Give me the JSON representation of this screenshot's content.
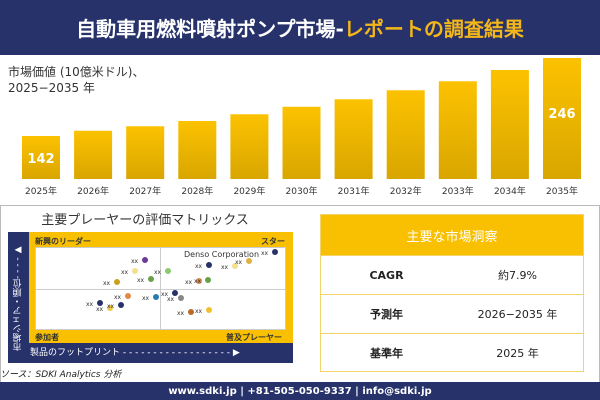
{
  "header": {
    "title_main": "自動車用燃料噴射ポンプ市場-",
    "title_accent": "レポートの調査結果"
  },
  "chart_data": {
    "type": "bar",
    "title": "市場価値 (10億米ドル)、",
    "subtitle": "2025−2035 年",
    "categories": [
      "2025年",
      "2026年",
      "2027年",
      "2028年",
      "2029年",
      "2030年",
      "2031年",
      "2032年",
      "2033年",
      "2034年",
      "2035年"
    ],
    "values": [
      142,
      149,
      155,
      162,
      171,
      181,
      191,
      203,
      215,
      230,
      246
    ],
    "data_labels": {
      "0": "142",
      "10": "246"
    },
    "colors": {
      "bar": "#f4b800",
      "bar_dark": "#d9a600"
    }
  },
  "matrix": {
    "title": "主要プレーヤーの評価マトリックス",
    "quadrants": {
      "top_left": "新興のリーダー",
      "top_right": "スター",
      "bottom_left": "参加者",
      "bottom_right": "普及プレーヤー"
    },
    "highlight": "Denso Corporation",
    "x_label": "製品のフットプリント",
    "y_label": "市場シェア・順位",
    "point_label": "xx",
    "points": [
      {
        "c": "#6a3a9a"
      },
      {
        "c": "#f3e08a"
      },
      {
        "c": "#c9a020"
      },
      {
        "c": "#6aa04a"
      },
      {
        "c": "#e08a4a"
      },
      {
        "c": "#2a7ab0"
      },
      {
        "c": "#27326b"
      },
      {
        "c": "#f0c850"
      },
      {
        "c": "#27326b"
      },
      {
        "c": "#8cc870"
      },
      {
        "c": "#27326b"
      },
      {
        "c": "#f3e08a"
      },
      {
        "c": "#e0b040"
      },
      {
        "c": "#27326b"
      },
      {
        "c": "#e08a4a"
      },
      {
        "c": "#6aa04a"
      },
      {
        "c": "#27326b"
      },
      {
        "c": "#888888"
      },
      {
        "c": "#b86a2a"
      },
      {
        "c": "#f0c030"
      }
    ]
  },
  "source": "ソース：SDKI Analytics 分析",
  "insights": {
    "title": "主要な市場洞察",
    "rows": [
      {
        "k": "CAGR",
        "v": "約7.9%"
      },
      {
        "k": "予測年",
        "v": "2026−2035 年"
      },
      {
        "k": "基準年",
        "v": "2025 年"
      }
    ]
  },
  "footer": "www.sdki.jp | +81-505-050-9337 | info@sdki.jp"
}
